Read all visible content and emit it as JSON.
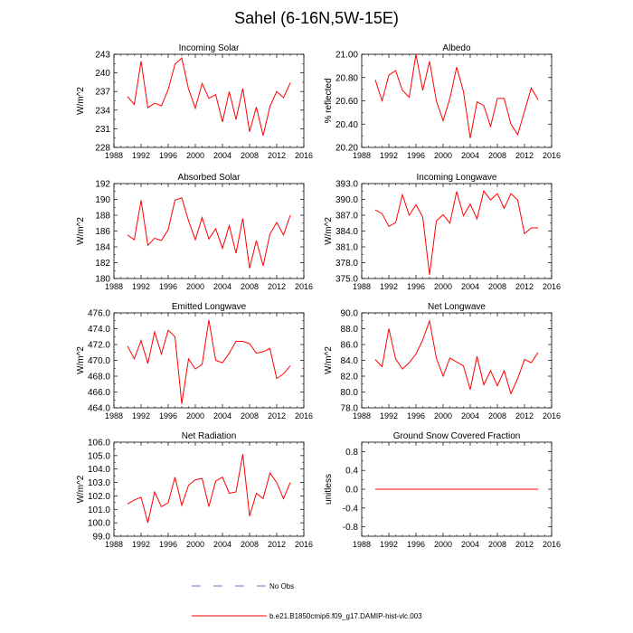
{
  "page_title": "Sahel (6-16N,5W-15E)",
  "legend": {
    "obs_label": "No Obs",
    "model_label": "b.e21.B1850cmip6.f09_g17.DAMIP-hist-vlc.003",
    "obs_color": "#6f6fd8",
    "model_color": "#ff0000"
  },
  "chart_data": [
    {
      "type": "line",
      "title": "Incoming Solar",
      "ylabel": "W/m^2",
      "xlabel": "",
      "xlim": [
        1988,
        2016
      ],
      "x_ticks": [
        1988,
        1992,
        1996,
        2000,
        2004,
        2008,
        2012,
        2016
      ],
      "ylim": [
        228,
        243
      ],
      "y_ticks": [
        "228",
        "231",
        "234",
        "237",
        "240",
        "243"
      ],
      "y_tick_values": [
        228,
        231,
        234,
        237,
        240,
        243
      ],
      "series": [
        {
          "name": "b.e21.B1850cmip6.f09_g17.DAMIP-hist-vlc.003",
          "x": [
            1990,
            1991,
            1992,
            1993,
            1994,
            1995,
            1996,
            1997,
            1998,
            1999,
            2000,
            2001,
            2002,
            2003,
            2004,
            2005,
            2006,
            2007,
            2008,
            2009,
            2010,
            2011,
            2012,
            2013,
            2014
          ],
          "values": [
            236.2,
            234.9,
            241.9,
            234.4,
            235.1,
            234.7,
            237.3,
            241.4,
            242.4,
            237.4,
            234.3,
            238.3,
            235.9,
            236.5,
            232.1,
            237.0,
            232.5,
            237.5,
            230.5,
            234.5,
            229.9,
            234.6,
            237.0,
            236.0,
            238.4
          ]
        }
      ]
    },
    {
      "type": "line",
      "title": "Albedo",
      "ylabel": "% reflected",
      "xlabel": "",
      "xlim": [
        1988,
        2016
      ],
      "x_ticks": [
        1988,
        1992,
        1996,
        2000,
        2004,
        2008,
        2012,
        2016
      ],
      "ylim": [
        20.2,
        21.0
      ],
      "y_ticks": [
        "20.20",
        "20.40",
        "20.60",
        "20.80",
        "21.00"
      ],
      "y_tick_values": [
        20.2,
        20.4,
        20.6,
        20.8,
        21.0
      ],
      "series": [
        {
          "name": "b.e21.B1850cmip6.f09_g17.DAMIP-hist-vlc.003",
          "x": [
            1990,
            1991,
            1992,
            1993,
            1994,
            1995,
            1996,
            1997,
            1998,
            1999,
            2000,
            2001,
            2002,
            2003,
            2004,
            2005,
            2006,
            2007,
            2008,
            2009,
            2010,
            2011,
            2012,
            2013,
            2014
          ],
          "values": [
            20.78,
            20.6,
            20.82,
            20.86,
            20.69,
            20.63,
            21.0,
            20.69,
            20.94,
            20.6,
            20.43,
            20.62,
            20.89,
            20.68,
            20.28,
            20.59,
            20.56,
            20.38,
            20.62,
            20.62,
            20.4,
            20.31,
            20.51,
            20.71,
            20.61
          ]
        }
      ]
    },
    {
      "type": "line",
      "title": "Absorbed Solar",
      "ylabel": "W/m^2",
      "xlabel": "",
      "xlim": [
        1988,
        2016
      ],
      "x_ticks": [
        1988,
        1992,
        1996,
        2000,
        2004,
        2008,
        2012,
        2016
      ],
      "ylim": [
        180,
        192
      ],
      "y_ticks": [
        "180",
        "182",
        "184",
        "186",
        "188",
        "190",
        "192"
      ],
      "y_tick_values": [
        180,
        182,
        184,
        186,
        188,
        190,
        192
      ],
      "series": [
        {
          "name": "b.e21.B1850cmip6.f09_g17.DAMIP-hist-vlc.003",
          "x": [
            1990,
            1991,
            1992,
            1993,
            1994,
            1995,
            1996,
            1997,
            1998,
            1999,
            2000,
            2001,
            2002,
            2003,
            2004,
            2005,
            2006,
            2007,
            2008,
            2009,
            2010,
            2011,
            2012,
            2013,
            2014
          ],
          "values": [
            185.5,
            184.9,
            189.9,
            184.2,
            185.1,
            184.8,
            186.2,
            189.9,
            190.2,
            187.3,
            184.9,
            187.7,
            185.0,
            186.3,
            183.8,
            186.7,
            183.2,
            187.6,
            181.3,
            184.8,
            181.6,
            185.6,
            187.1,
            185.5,
            188.0
          ]
        }
      ]
    },
    {
      "type": "line",
      "title": "Incoming Longwave",
      "ylabel": "W/m^2",
      "xlabel": "",
      "xlim": [
        1988,
        2016
      ],
      "x_ticks": [
        1988,
        1992,
        1996,
        2000,
        2004,
        2008,
        2012,
        2016
      ],
      "ylim": [
        375,
        393
      ],
      "y_ticks": [
        "375.0",
        "378.0",
        "381.0",
        "384.0",
        "387.0",
        "390.0",
        "393.0"
      ],
      "y_tick_values": [
        375,
        378,
        381,
        384,
        387,
        390,
        393
      ],
      "series": [
        {
          "name": "b.e21.B1850cmip6.f09_g17.DAMIP-hist-vlc.003",
          "x": [
            1990,
            1991,
            1992,
            1993,
            1994,
            1995,
            1996,
            1997,
            1998,
            1999,
            2000,
            2001,
            2002,
            2003,
            2004,
            2005,
            2006,
            2007,
            2008,
            2009,
            2010,
            2011,
            2012,
            2013,
            2014
          ],
          "values": [
            388.0,
            387.3,
            384.9,
            385.6,
            390.9,
            387.0,
            389.0,
            386.6,
            375.7,
            385.9,
            387.1,
            385.5,
            391.5,
            386.9,
            389.1,
            386.3,
            391.6,
            389.9,
            391.1,
            388.3,
            391.1,
            389.9,
            383.5,
            384.6,
            384.6
          ]
        }
      ]
    },
    {
      "type": "line",
      "title": "Emitted Longwave",
      "ylabel": "W/m^2",
      "xlabel": "",
      "xlim": [
        1988,
        2016
      ],
      "x_ticks": [
        1988,
        1992,
        1996,
        2000,
        2004,
        2008,
        2012,
        2016
      ],
      "ylim": [
        464,
        476
      ],
      "y_ticks": [
        "464.0",
        "466.0",
        "468.0",
        "470.0",
        "472.0",
        "474.0",
        "476.0"
      ],
      "y_tick_values": [
        464,
        466,
        468,
        470,
        472,
        474,
        476
      ],
      "series": [
        {
          "name": "b.e21.B1850cmip6.f09_g17.DAMIP-hist-vlc.003",
          "x": [
            1990,
            1991,
            1992,
            1993,
            1994,
            1995,
            1996,
            1997,
            1998,
            1999,
            2000,
            2001,
            2002,
            2003,
            2004,
            2005,
            2006,
            2007,
            2008,
            2009,
            2010,
            2011,
            2012,
            2013,
            2014
          ],
          "values": [
            471.8,
            470.2,
            472.5,
            469.6,
            473.6,
            470.8,
            473.8,
            473.0,
            464.5,
            470.2,
            468.9,
            469.5,
            475.1,
            470.0,
            469.7,
            470.9,
            472.4,
            472.4,
            472.1,
            470.9,
            471.1,
            471.5,
            467.7,
            468.3,
            469.3
          ]
        }
      ]
    },
    {
      "type": "line",
      "title": "Net Longwave",
      "ylabel": "W/m^2",
      "xlabel": "",
      "xlim": [
        1988,
        2016
      ],
      "x_ticks": [
        1988,
        1992,
        1996,
        2000,
        2004,
        2008,
        2012,
        2016
      ],
      "ylim": [
        78,
        90
      ],
      "y_ticks": [
        "78.0",
        "80.0",
        "82.0",
        "84.0",
        "86.0",
        "88.0",
        "90.0"
      ],
      "y_tick_values": [
        78,
        80,
        82,
        84,
        86,
        88,
        90
      ],
      "series": [
        {
          "name": "b.e21.B1850cmip6.f09_g17.DAMIP-hist-vlc.003",
          "x": [
            1990,
            1991,
            1992,
            1993,
            1994,
            1995,
            1996,
            1997,
            1998,
            1999,
            2000,
            2001,
            2002,
            2003,
            2004,
            2005,
            2006,
            2007,
            2008,
            2009,
            2010,
            2011,
            2012,
            2013,
            2014
          ],
          "values": [
            84.1,
            83.2,
            88.0,
            84.2,
            82.9,
            83.7,
            84.8,
            86.6,
            89.0,
            84.3,
            82.0,
            84.3,
            83.8,
            83.3,
            80.3,
            84.5,
            80.9,
            82.7,
            80.8,
            82.7,
            79.8,
            81.7,
            84.1,
            83.7,
            85.0
          ]
        }
      ]
    },
    {
      "type": "line",
      "title": "Net Radiation",
      "ylabel": "W/m^2",
      "xlabel": "",
      "xlim": [
        1988,
        2016
      ],
      "x_ticks": [
        1988,
        1992,
        1996,
        2000,
        2004,
        2008,
        2012,
        2016
      ],
      "ylim": [
        99,
        106
      ],
      "y_ticks": [
        "99.0",
        "100.0",
        "101.0",
        "102.0",
        "103.0",
        "104.0",
        "105.0",
        "106.0"
      ],
      "y_tick_values": [
        99,
        100,
        101,
        102,
        103,
        104,
        105,
        106
      ],
      "series": [
        {
          "name": "b.e21.B1850cmip6.f09_g17.DAMIP-hist-vlc.003",
          "x": [
            1990,
            1991,
            1992,
            1993,
            1994,
            1995,
            1996,
            1997,
            1998,
            1999,
            2000,
            2001,
            2002,
            2003,
            2004,
            2005,
            2006,
            2007,
            2008,
            2009,
            2010,
            2011,
            2012,
            2013,
            2014
          ],
          "values": [
            101.4,
            101.7,
            101.9,
            100.0,
            102.3,
            101.2,
            101.5,
            103.4,
            101.3,
            102.8,
            103.2,
            103.3,
            101.2,
            103.1,
            103.4,
            102.2,
            102.3,
            105.1,
            100.5,
            102.2,
            101.8,
            103.7,
            103.0,
            101.8,
            103.0
          ]
        }
      ]
    },
    {
      "type": "line",
      "title": "Ground Snow Covered Fraction",
      "ylabel": "unitless",
      "xlabel": "",
      "xlim": [
        1988,
        2016
      ],
      "x_ticks": [
        1988,
        1992,
        1996,
        2000,
        2004,
        2008,
        2012,
        2016
      ],
      "ylim": [
        -1.0,
        1.0
      ],
      "y_ticks": [
        "-0.8",
        "-0.4",
        "0.0",
        "0.4",
        "0.8"
      ],
      "y_tick_values": [
        -0.8,
        -0.4,
        0.0,
        0.4,
        0.8
      ],
      "series": [
        {
          "name": "b.e21.B1850cmip6.f09_g17.DAMIP-hist-vlc.003",
          "x": [
            1990,
            1991,
            1992,
            1993,
            1994,
            1995,
            1996,
            1997,
            1998,
            1999,
            2000,
            2001,
            2002,
            2003,
            2004,
            2005,
            2006,
            2007,
            2008,
            2009,
            2010,
            2011,
            2012,
            2013,
            2014
          ],
          "values": [
            0,
            0,
            0,
            0,
            0,
            0,
            0,
            0,
            0,
            0,
            0,
            0,
            0,
            0,
            0,
            0,
            0,
            0,
            0,
            0,
            0,
            0,
            0,
            0,
            0
          ]
        }
      ]
    }
  ]
}
